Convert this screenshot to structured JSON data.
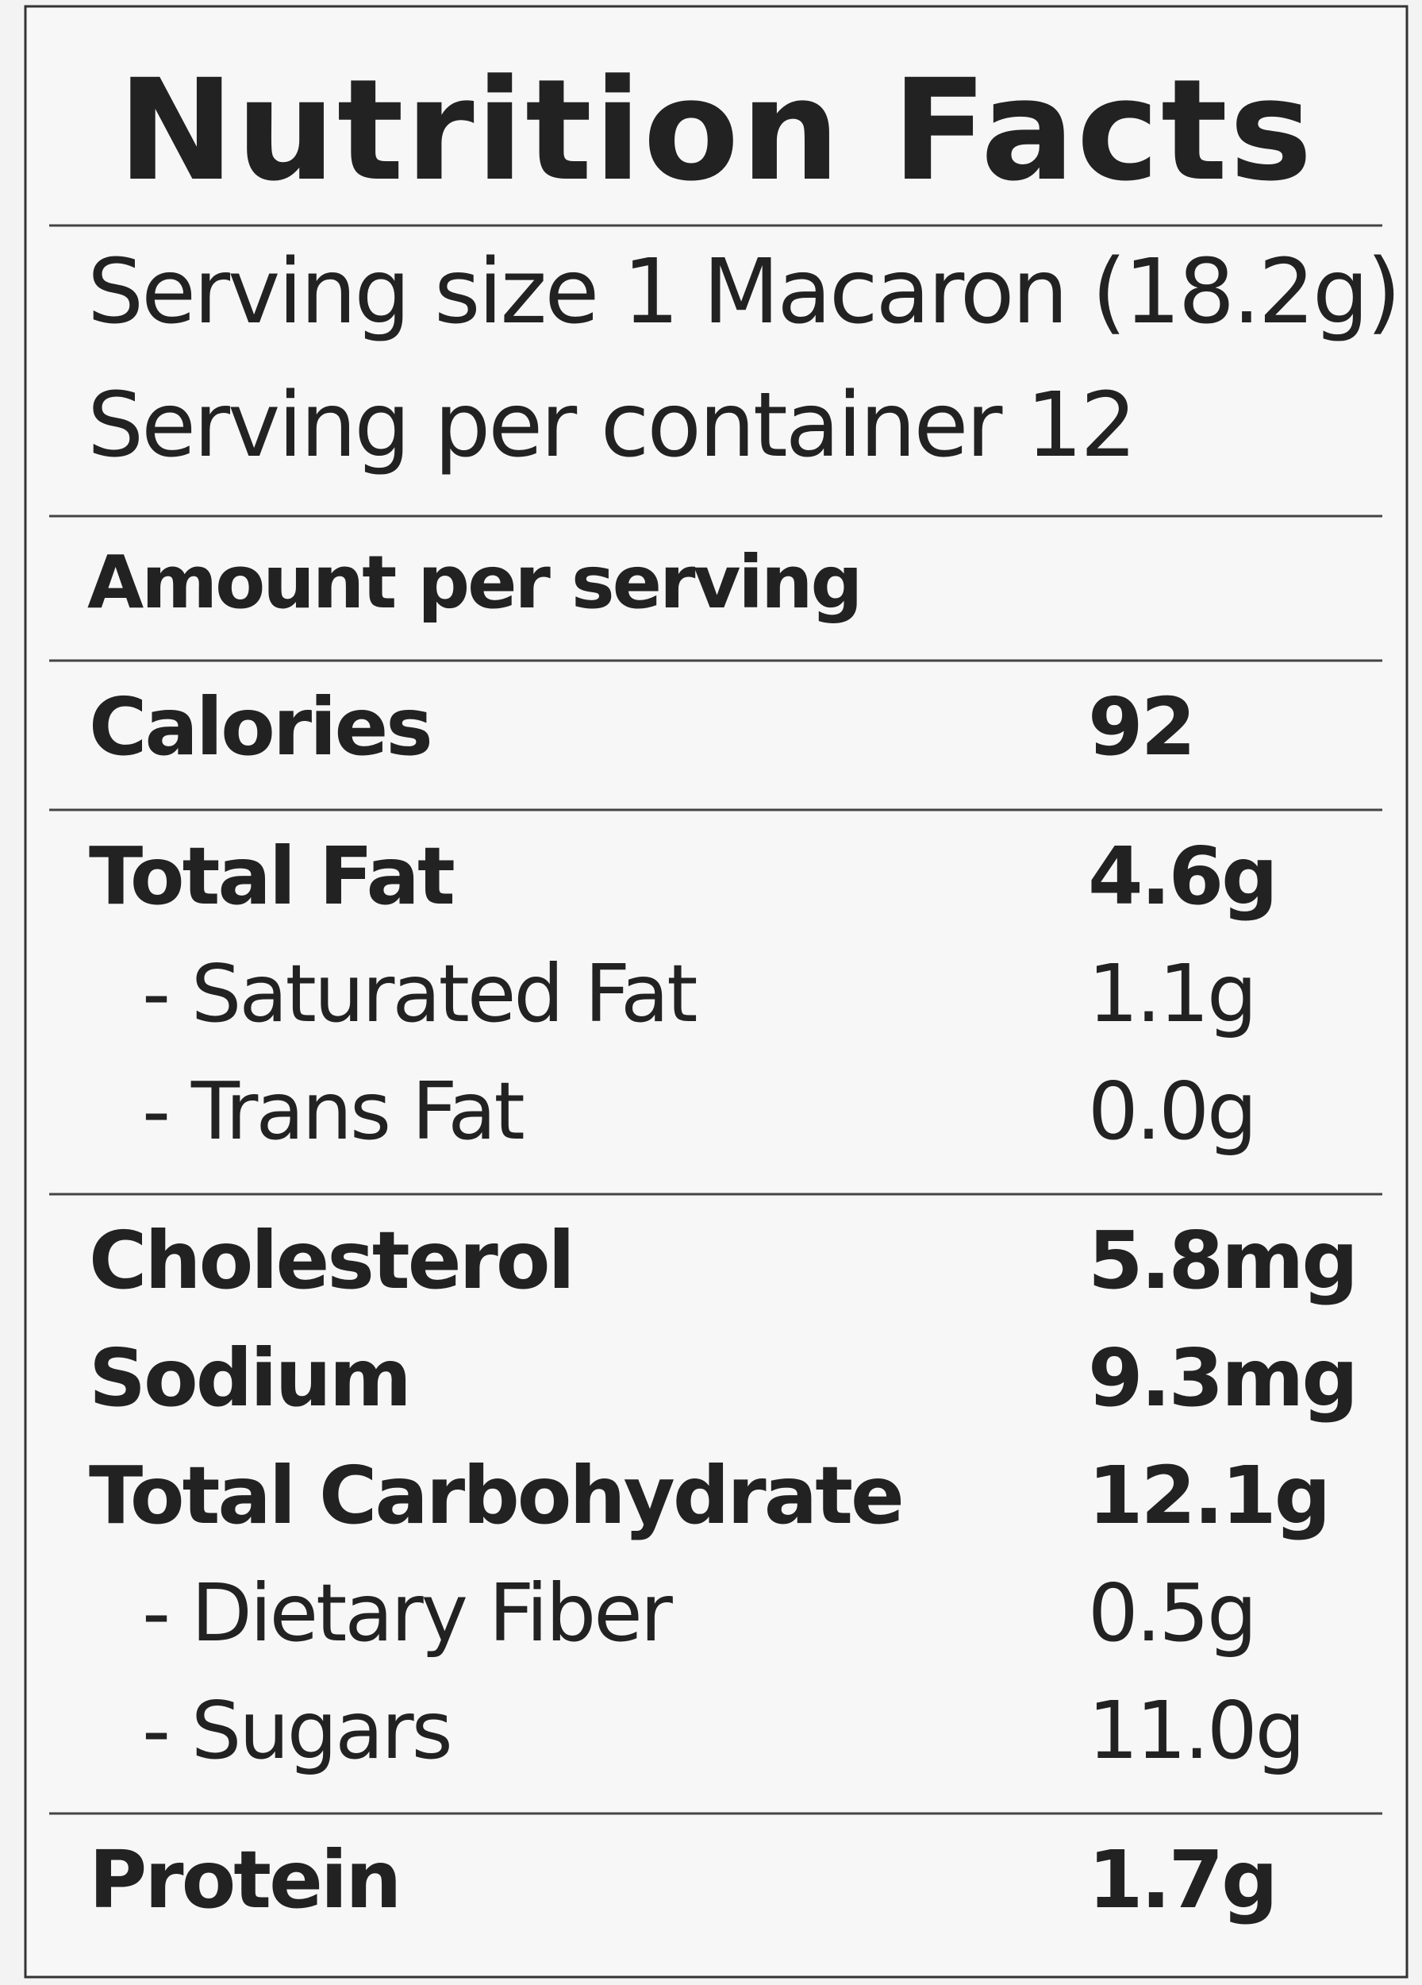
{
  "title": "Nutrition Facts",
  "serving_size": "Serving size 1 Macaron (18.2g)",
  "servings_per_container": "Serving per container 12",
  "amount_per_serving": "Amount per serving",
  "sections": [
    {
      "rows": [
        {
          "label": "Calories",
          "value": "92",
          "sub": []
        }
      ]
    },
    {
      "rows": [
        {
          "label": "Total Fat",
          "value": "4.6g",
          "sub": [
            {
              "label": "- Saturated Fat",
              "value": "1.1g"
            },
            {
              "label": "- Trans Fat",
              "value": "0.0g"
            }
          ]
        }
      ]
    },
    {
      "rows": [
        {
          "label": "Cholesterol",
          "value": "5.8mg",
          "sub": []
        },
        {
          "label": "Sodium",
          "value": "9.3mg",
          "sub": []
        },
        {
          "label": "Total Carbohydrate",
          "value": "12.1g",
          "sub": [
            {
              "label": "- Dietary Fiber",
              "value": "0.5g"
            },
            {
              "label": "- Sugars",
              "value": "11.0g"
            }
          ]
        }
      ]
    },
    {
      "rows": [
        {
          "label": "Protein",
          "value": "1.7g",
          "sub": []
        }
      ]
    }
  ]
}
